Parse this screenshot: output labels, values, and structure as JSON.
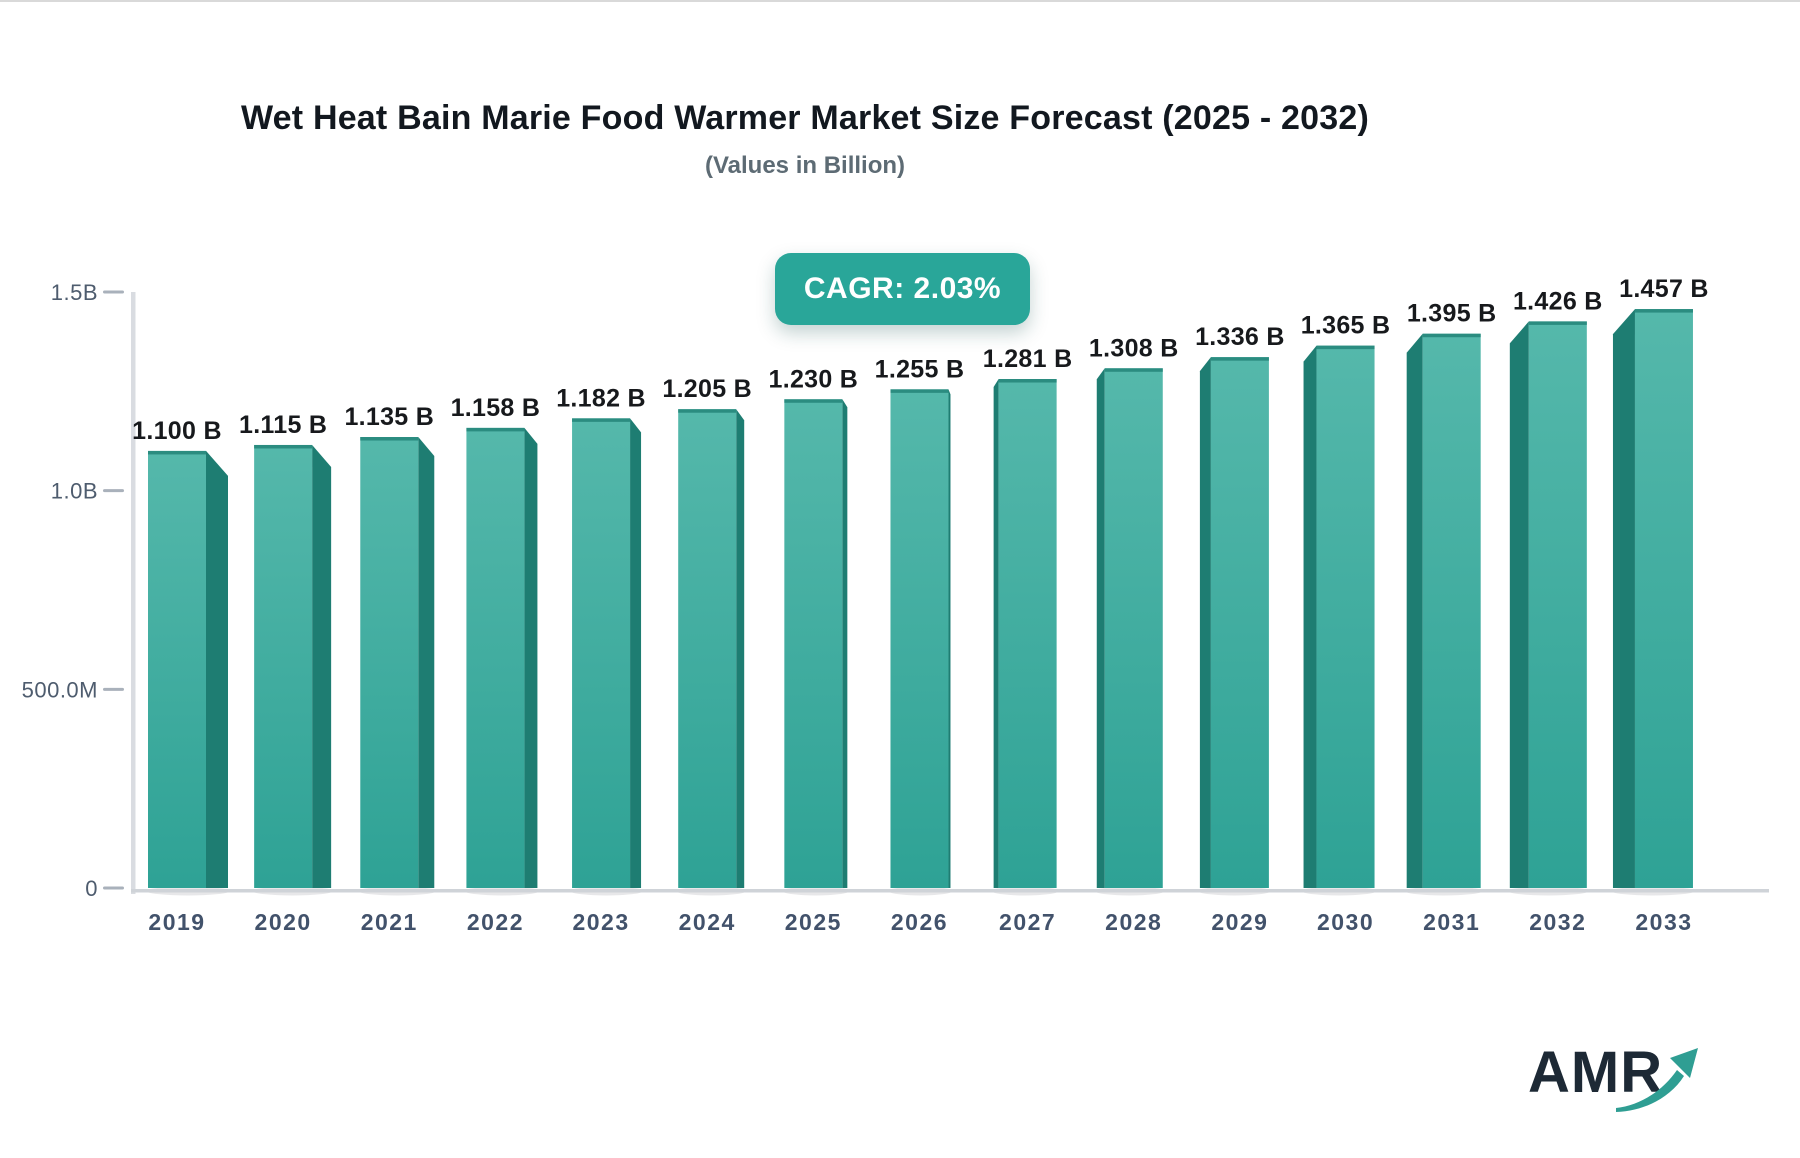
{
  "header": {
    "title": "Wet Heat Bain Marie Food Warmer Market Size Forecast (2025 - 2032)",
    "subtitle": "(Values in Billion)"
  },
  "badge": {
    "text": "CAGR: 2.03%",
    "bg_color": "#29a699"
  },
  "branding": {
    "logo_text": "AMR",
    "logo_text_color": "#1d2935",
    "logo_arrow_color": "#2f9e93"
  },
  "chart_data": {
    "type": "bar",
    "title": "Wet Heat Bain Marie Food Warmer Market Size Forecast (2025 - 2032)",
    "subtitle": "(Values in Billion)",
    "cagr_label": "CAGR: 2.03%",
    "categories": [
      "2019",
      "2020",
      "2021",
      "2022",
      "2023",
      "2024",
      "2025",
      "2026",
      "2027",
      "2028",
      "2029",
      "2030",
      "2031",
      "2032",
      "2033"
    ],
    "values": [
      1.1,
      1.115,
      1.135,
      1.158,
      1.182,
      1.205,
      1.23,
      1.255,
      1.281,
      1.308,
      1.336,
      1.365,
      1.395,
      1.426,
      1.457
    ],
    "value_labels": [
      "1.100 B",
      "1.115 B",
      "1.135 B",
      "1.158 B",
      "1.182 B",
      "1.205 B",
      "1.230 B",
      "1.255 B",
      "1.281 B",
      "1.308 B",
      "1.336 B",
      "1.365 B",
      "1.395 B",
      "1.426 B",
      "1.457 B"
    ],
    "xlabel": "",
    "ylabel": "",
    "ylim": [
      0,
      1.5
    ],
    "y_ticks": [
      {
        "label": "1.5B",
        "value": 1.5
      },
      {
        "label": "1.0B",
        "value": 1.0
      },
      {
        "label": "500.0M",
        "value": 0.5
      },
      {
        "label": "0",
        "value": 0
      }
    ],
    "grid": false,
    "legend": false,
    "bar_colors": {
      "front_top": "#55b8ab",
      "front_bottom": "#2ea295",
      "side": "#1e7d72",
      "top_edge": "#2b8c80"
    },
    "axis_line_color": "#d9dce1"
  }
}
